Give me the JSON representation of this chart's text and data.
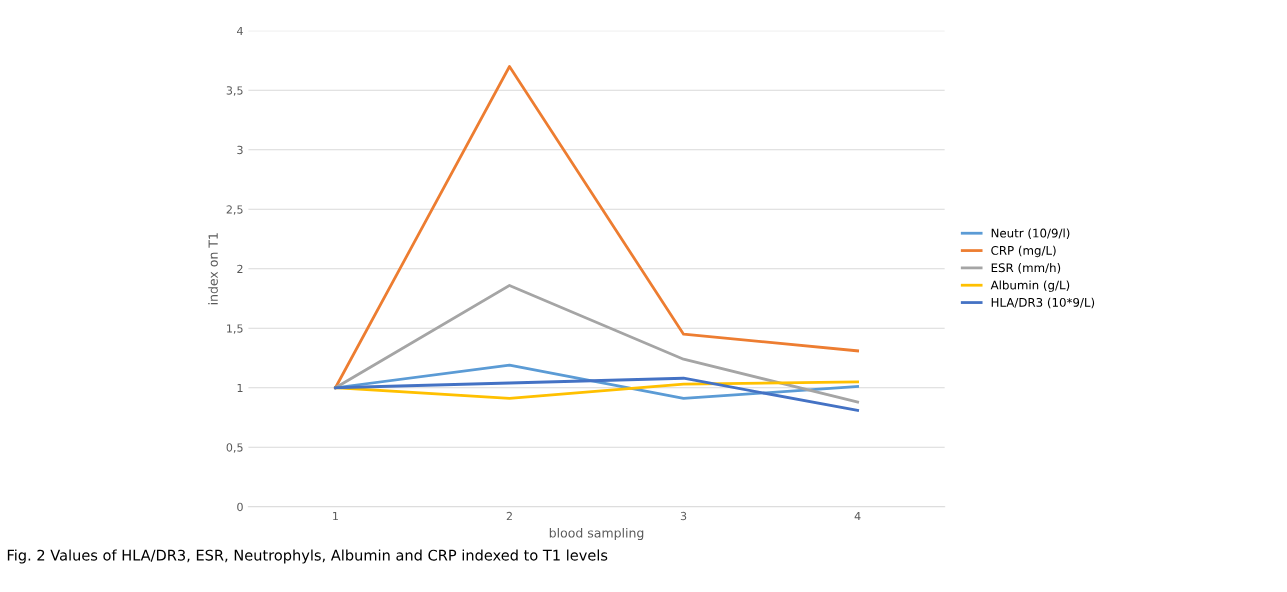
{
  "chart_data": {
    "type": "line",
    "xlabel": "blood sampling",
    "ylabel": "index on T1",
    "categories": [
      "1",
      "2",
      "3",
      "4"
    ],
    "series": [
      {
        "name": "Neutr (10/9/l)",
        "color": "#5b9bd5",
        "values": [
          1,
          1.19,
          0.91,
          1.01
        ]
      },
      {
        "name": "CRP (mg/L)",
        "color": "#ed7d31",
        "values": [
          1,
          3.7,
          1.45,
          1.31
        ]
      },
      {
        "name": "ESR (mm/h)",
        "color": "#a5a5a5",
        "values": [
          1,
          1.86,
          1.24,
          0.88
        ]
      },
      {
        "name": "Albumin (g/L)",
        "color": "#ffc000",
        "values": [
          1,
          0.91,
          1.03,
          1.05
        ]
      },
      {
        "name": "HLA/DR3 (10*9/L)",
        "color": "#4472c4",
        "values": [
          1,
          1.04,
          1.08,
          0.81
        ]
      }
    ],
    "ylim": [
      0,
      4
    ],
    "yticks": [
      0,
      {
        "value": 0.5,
        "label": "0,5"
      },
      1,
      {
        "value": 1.5,
        "label": "1,5"
      },
      2,
      {
        "value": 2.5,
        "label": "2,5"
      },
      3,
      {
        "value": 3.5,
        "label": "3,5"
      },
      4
    ],
    "grid": "y",
    "legend": "right",
    "marker": "none",
    "line_style": "solid",
    "annotations": [
      "Fig. 2 Values of HLA/DR3, ESR, Neutrophyls, Albumin and CRP indexed to T1 levels"
    ]
  }
}
